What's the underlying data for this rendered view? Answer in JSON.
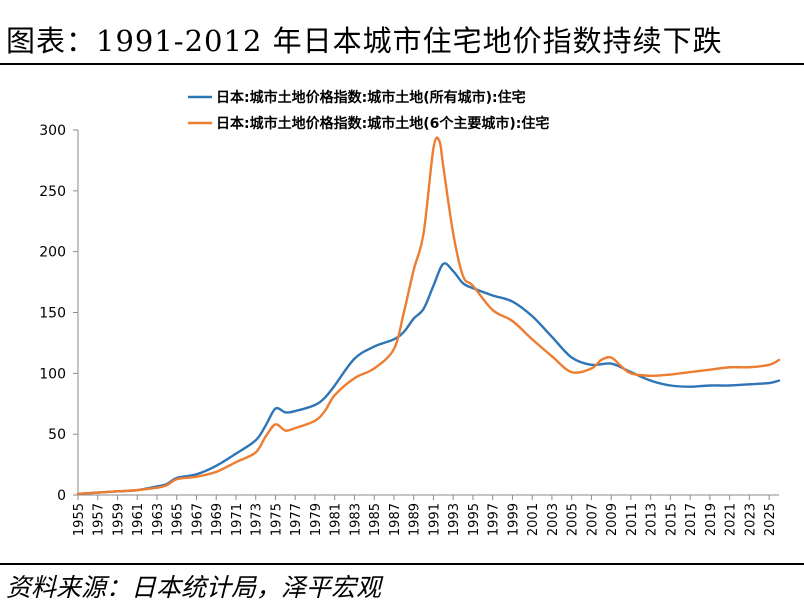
{
  "header": {
    "title": "图表：1991-2012 年日本城市住宅地价指数持续下跌"
  },
  "footer": {
    "source": "资料来源：日本统计局，泽平宏观"
  },
  "chart_data": {
    "type": "line",
    "legend_position": "top",
    "grid": false,
    "xlim": [
      1955,
      2026
    ],
    "ylim": [
      0,
      300
    ],
    "yticks": [
      0,
      50,
      100,
      150,
      200,
      250,
      300
    ],
    "xticks": [
      "1955",
      "1957",
      "1959",
      "1961",
      "1963",
      "1965",
      "1967",
      "1969",
      "1971",
      "1973",
      "1975",
      "1977",
      "1979",
      "1981",
      "1983",
      "1985",
      "1987",
      "1989",
      "1991",
      "1993",
      "1995",
      "1997",
      "1999",
      "2001",
      "2003",
      "2005",
      "2007",
      "2009",
      "2011",
      "2013",
      "2015",
      "2017",
      "2019",
      "2021",
      "2023",
      "2025"
    ],
    "colors": {
      "all_cities": "#2E75B6",
      "six_cities": "#ED7D31"
    },
    "series": [
      {
        "name": "日本:城市土地价格指数:城市土地(所有城市):住宅",
        "color": "#2E75B6",
        "x": [
          1955,
          1957,
          1959,
          1961,
          1963,
          1964,
          1965,
          1967,
          1969,
          1971,
          1973,
          1974,
          1975,
          1976,
          1977,
          1979,
          1980,
          1981,
          1983,
          1985,
          1987,
          1988,
          1989,
          1990,
          1991,
          1992,
          1993,
          1994,
          1995,
          1997,
          1999,
          2001,
          2003,
          2005,
          2007,
          2009,
          2011,
          2013,
          2015,
          2017,
          2019,
          2021,
          2023,
          2025,
          2026
        ],
        "y": [
          1,
          2,
          3,
          4,
          7,
          9,
          14,
          17,
          24,
          34,
          45,
          57,
          71,
          68,
          69,
          74,
          80,
          90,
          112,
          122,
          128,
          134,
          145,
          153,
          172,
          190,
          184,
          174,
          170,
          164,
          159,
          147,
          130,
          113,
          107,
          108,
          101,
          94,
          90,
          89,
          90,
          90,
          91,
          92,
          94
        ]
      },
      {
        "name": "日本:城市土地价格指数:城市土地(6个主要城市):住宅",
        "color": "#ED7D31",
        "x": [
          1955,
          1957,
          1959,
          1961,
          1963,
          1964,
          1965,
          1967,
          1969,
          1971,
          1973,
          1974,
          1975,
          1976,
          1977,
          1979,
          1980,
          1981,
          1983,
          1985,
          1987,
          1988,
          1989,
          1990,
          1991,
          1991.6,
          1992,
          1993,
          1994,
          1995,
          1997,
          1999,
          2001,
          2003,
          2005,
          2007,
          2008,
          2009,
          2010,
          2011,
          2013,
          2015,
          2017,
          2019,
          2021,
          2023,
          2025,
          2026
        ],
        "y": [
          1,
          2,
          3,
          4,
          6,
          8,
          13,
          15,
          19,
          27,
          35,
          48,
          58,
          53,
          55,
          61,
          69,
          82,
          96,
          104,
          120,
          150,
          185,
          215,
          285,
          291,
          270,
          215,
          180,
          172,
          152,
          143,
          128,
          114,
          101,
          104,
          111,
          113,
          106,
          100,
          98,
          99,
          101,
          103,
          105,
          105,
          107,
          111
        ]
      }
    ]
  }
}
